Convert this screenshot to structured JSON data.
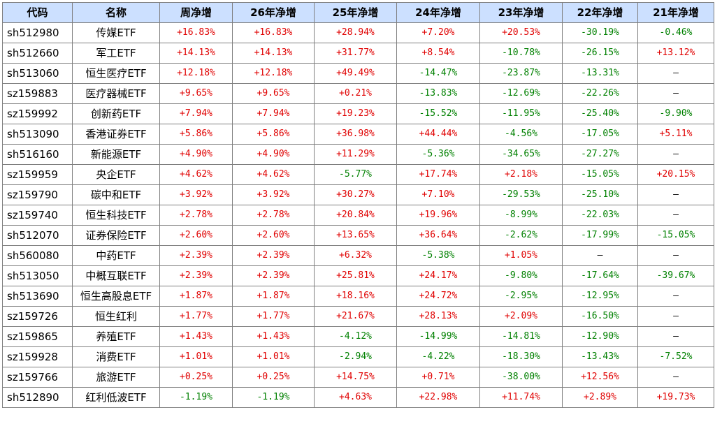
{
  "colors": {
    "header_bg": "#cce0ff",
    "positive": "#e00000",
    "negative": "#008000",
    "border": "#7f7f7f"
  },
  "headers": [
    "代码",
    "名称",
    "周净增",
    "26年净增",
    "25年净增",
    "24年净增",
    "23年净增",
    "22年净增",
    "21年净增"
  ],
  "rows": [
    {
      "code": "sh512980",
      "name": "传媒ETF",
      "values": [
        "+16.83%",
        "+16.83%",
        "+28.94%",
        "+7.20%",
        "+20.53%",
        "-30.19%",
        "-0.46%"
      ]
    },
    {
      "code": "sh512660",
      "name": "军工ETF",
      "values": [
        "+14.13%",
        "+14.13%",
        "+31.77%",
        "+8.54%",
        "-10.78%",
        "-26.15%",
        "+13.12%"
      ]
    },
    {
      "code": "sh513060",
      "name": "恒生医疗ETF",
      "values": [
        "+12.18%",
        "+12.18%",
        "+49.49%",
        "-14.47%",
        "-23.87%",
        "-13.31%",
        "—"
      ]
    },
    {
      "code": "sz159883",
      "name": "医疗器械ETF",
      "values": [
        "+9.65%",
        "+9.65%",
        "+0.21%",
        "-13.83%",
        "-12.69%",
        "-22.26%",
        "—"
      ]
    },
    {
      "code": "sz159992",
      "name": "创新药ETF",
      "values": [
        "+7.94%",
        "+7.94%",
        "+19.23%",
        "-15.52%",
        "-11.95%",
        "-25.40%",
        "-9.90%"
      ]
    },
    {
      "code": "sh513090",
      "name": "香港证券ETF",
      "values": [
        "+5.86%",
        "+5.86%",
        "+36.98%",
        "+44.44%",
        "-4.56%",
        "-17.05%",
        "+5.11%"
      ]
    },
    {
      "code": "sh516160",
      "name": "新能源ETF",
      "values": [
        "+4.90%",
        "+4.90%",
        "+11.29%",
        "-5.36%",
        "-34.65%",
        "-27.27%",
        "—"
      ]
    },
    {
      "code": "sz159959",
      "name": "央企ETF",
      "values": [
        "+4.62%",
        "+4.62%",
        "-5.77%",
        "+17.74%",
        "+2.18%",
        "-15.05%",
        "+20.15%"
      ]
    },
    {
      "code": "sz159790",
      "name": "碳中和ETF",
      "values": [
        "+3.92%",
        "+3.92%",
        "+30.27%",
        "+7.10%",
        "-29.53%",
        "-25.10%",
        "—"
      ]
    },
    {
      "code": "sz159740",
      "name": "恒生科技ETF",
      "values": [
        "+2.78%",
        "+2.78%",
        "+20.84%",
        "+19.96%",
        "-8.99%",
        "-22.03%",
        "—"
      ]
    },
    {
      "code": "sh512070",
      "name": "证券保险ETF",
      "values": [
        "+2.60%",
        "+2.60%",
        "+13.65%",
        "+36.64%",
        "-2.62%",
        "-17.99%",
        "-15.05%"
      ]
    },
    {
      "code": "sh560080",
      "name": "中药ETF",
      "values": [
        "+2.39%",
        "+2.39%",
        "+6.32%",
        "-5.38%",
        "+1.05%",
        "—",
        "—"
      ]
    },
    {
      "code": "sh513050",
      "name": "中概互联ETF",
      "values": [
        "+2.39%",
        "+2.39%",
        "+25.81%",
        "+24.17%",
        "-9.80%",
        "-17.64%",
        "-39.67%"
      ]
    },
    {
      "code": "sh513690",
      "name": "恒生高股息ETF",
      "values": [
        "+1.87%",
        "+1.87%",
        "+18.16%",
        "+24.72%",
        "-2.95%",
        "-12.95%",
        "—"
      ]
    },
    {
      "code": "sz159726",
      "name": "恒生红利",
      "values": [
        "+1.77%",
        "+1.77%",
        "+21.67%",
        "+28.13%",
        "+2.09%",
        "-16.50%",
        "—"
      ]
    },
    {
      "code": "sz159865",
      "name": "养殖ETF",
      "values": [
        "+1.43%",
        "+1.43%",
        "-4.12%",
        "-14.99%",
        "-14.81%",
        "-12.90%",
        "—"
      ]
    },
    {
      "code": "sz159928",
      "name": "消费ETF",
      "values": [
        "+1.01%",
        "+1.01%",
        "-2.94%",
        "-4.22%",
        "-18.30%",
        "-13.43%",
        "-7.52%"
      ]
    },
    {
      "code": "sz159766",
      "name": "旅游ETF",
      "values": [
        "+0.25%",
        "+0.25%",
        "+14.75%",
        "+0.71%",
        "-38.00%",
        "+12.56%",
        "—"
      ]
    },
    {
      "code": "sh512890",
      "name": "红利低波ETF",
      "values": [
        "-1.19%",
        "-1.19%",
        "+4.63%",
        "+22.98%",
        "+11.74%",
        "+2.89%",
        "+19.73%"
      ]
    }
  ]
}
